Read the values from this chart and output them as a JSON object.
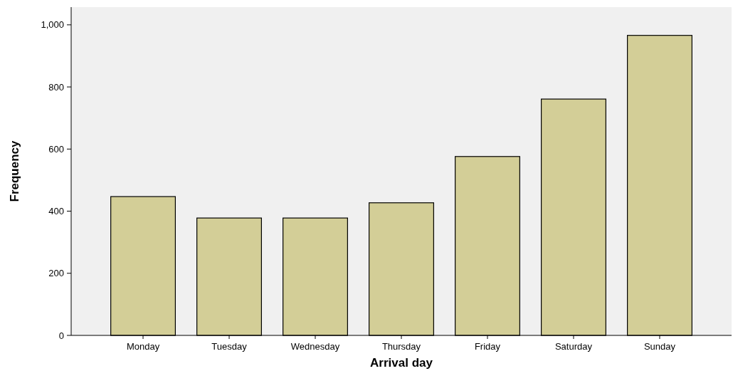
{
  "chart_data": {
    "type": "bar",
    "xlabel": "Arrival day",
    "ylabel": "Frequency",
    "categories": [
      "Monday",
      "Tuesday",
      "Wednesday",
      "Thursday",
      "Friday",
      "Saturday",
      "Sunday"
    ],
    "values": [
      447,
      378,
      378,
      427,
      576,
      761,
      966
    ],
    "color": "#d3ce97",
    "ylim": [
      0,
      1057
    ],
    "yticks": [
      0,
      200,
      400,
      600,
      800,
      {
        "value": 1000,
        "label": "1,000"
      }
    ],
    "grid": false
  }
}
